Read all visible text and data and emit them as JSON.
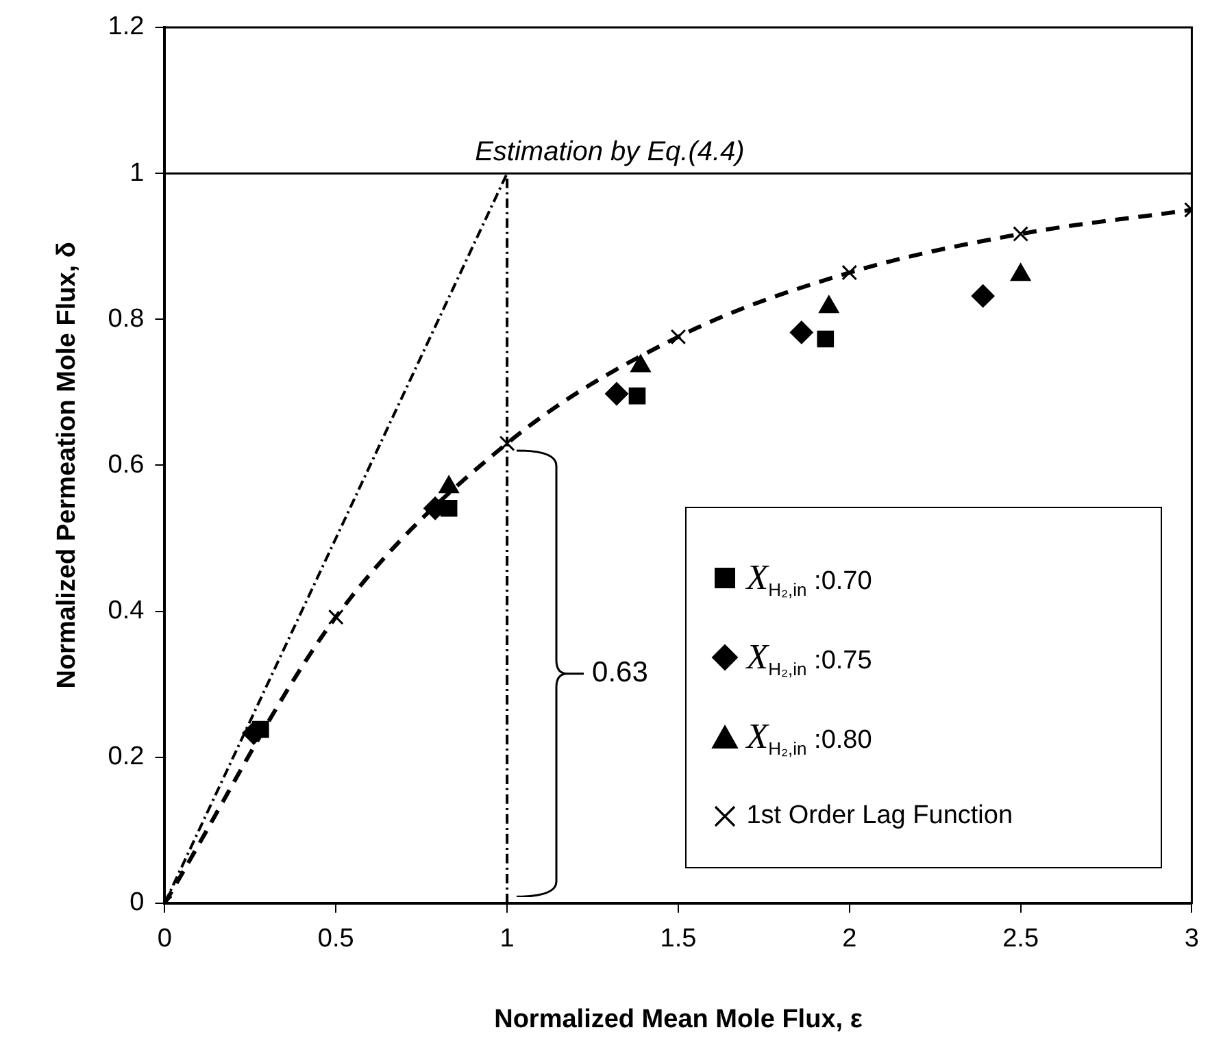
{
  "chart_data": {
    "type": "scatter",
    "xlabel": "Normalized Mean Mole Flux, ε",
    "ylabel": "Normalized Permeation Mole Flux, δ",
    "xlim": [
      0,
      3
    ],
    "ylim": [
      0,
      1.2
    ],
    "xticks": [
      0,
      0.5,
      1,
      1.5,
      2,
      2.5,
      3
    ],
    "yticks": [
      0,
      0.2,
      0.4,
      0.6,
      0.8,
      1,
      1.2
    ],
    "grid": false,
    "legend": "bottom right",
    "series": [
      {
        "name": "X$_{H₂,in}$ :0.70",
        "color": "#000000",
        "marker": "square",
        "x": [
          0.28,
          0.83,
          1.38,
          1.93
        ],
        "values": [
          0.238,
          0.541,
          0.695,
          0.773
        ]
      },
      {
        "name": "X$_{H₂,in}$ :0.75",
        "color": "#000000",
        "marker": "diamond",
        "x": [
          0.26,
          0.79,
          1.32,
          1.86,
          2.39
        ],
        "values": [
          0.233,
          0.541,
          0.698,
          0.782,
          0.832
        ]
      },
      {
        "name": "X$_{H₂,in}$ :0.80",
        "color": "#000000",
        "marker": "triangle",
        "x": [
          0.83,
          1.39,
          1.94,
          2.5
        ],
        "values": [
          0.57,
          0.736,
          0.817,
          0.861
        ]
      },
      {
        "name": "1st Order Lag Function",
        "type": "line",
        "color": "#000000",
        "marker": "cross",
        "line_style": "dashed",
        "x": [
          0,
          0.5,
          1,
          1.5,
          2,
          2.5,
          3
        ],
        "values": [
          0,
          0.392,
          0.63,
          0.776,
          0.864,
          0.917,
          0.95
        ]
      },
      {
        "type": "line",
        "color": "#000000",
        "marker": "none",
        "line_style": "dotted",
        "x": [
          0,
          1
        ],
        "values": [
          0,
          1
        ]
      },
      {
        "type": "line",
        "color": "#000000",
        "marker": "none",
        "line_style": "dotted",
        "x": [
          1,
          1
        ],
        "values": [
          0,
          1
        ]
      }
    ],
    "ref_lines": [
      {
        "axis": "y",
        "value": 1,
        "label": "Estimation by Eq.(4.4)",
        "line_style": "solid",
        "color": "#000000"
      }
    ],
    "annotations": [
      {
        "text": "0.63",
        "x": 1,
        "y": 0.315
      }
    ]
  }
}
